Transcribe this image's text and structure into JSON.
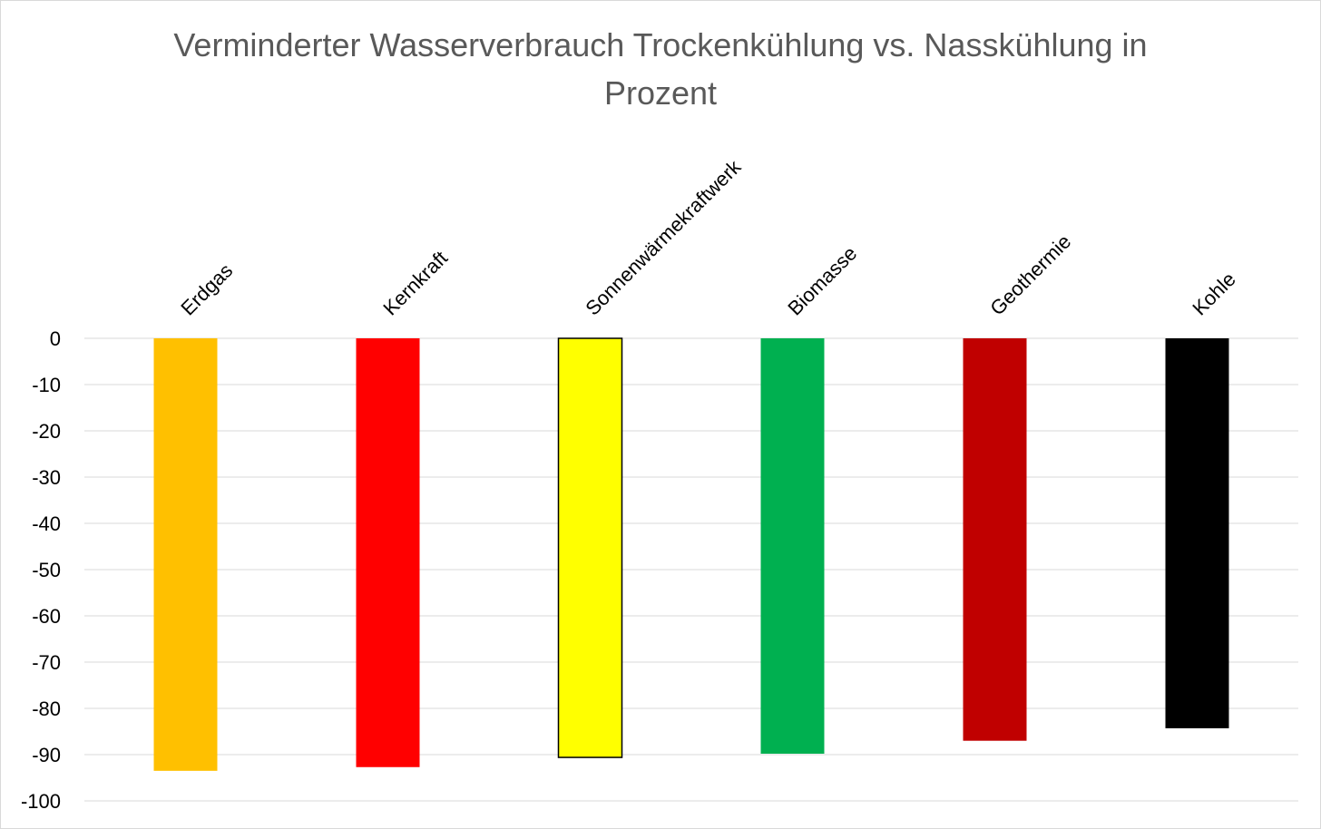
{
  "chart_data": {
    "type": "bar",
    "title_lines": [
      "Verminderter Wasserverbrauch Trockenkühlung vs. Nasskühlung in",
      "Prozent"
    ],
    "categories": [
      "Erdgas",
      "Kernkraft",
      "Sonnenwärmekraftwerk",
      "Biomasse",
      "Geothermie",
      "Kohle"
    ],
    "values": [
      -93.5,
      -92.7,
      -90.6,
      -89.8,
      -87.0,
      -84.3
    ],
    "colors": [
      "#FFC000",
      "#FF0000",
      "#FFFF00",
      "#00B050",
      "#C00000",
      "#000000"
    ],
    "outlined": [
      false,
      false,
      true,
      false,
      false,
      false
    ],
    "ylim": [
      -100,
      0
    ],
    "yticks": [
      0,
      -10,
      -20,
      -30,
      -40,
      -50,
      -60,
      -70,
      -80,
      -90,
      -100
    ],
    "xlabel": "",
    "ylabel": "",
    "grid": true,
    "category_axis_position": "top",
    "legend": "none"
  }
}
